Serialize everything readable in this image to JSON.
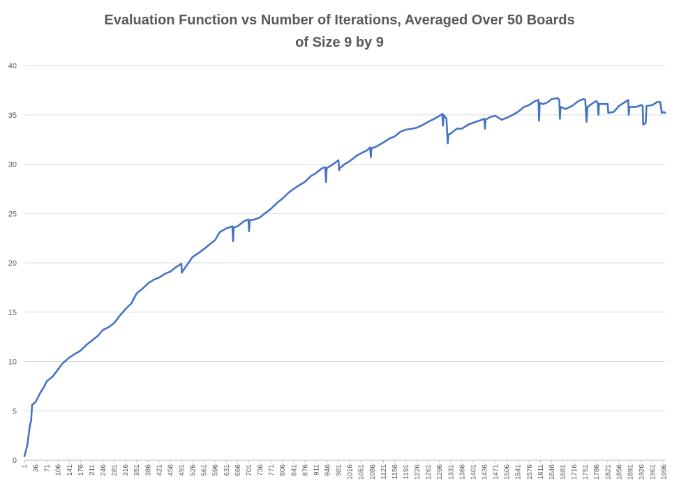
{
  "chart_data": {
    "type": "line",
    "title_lines": [
      "Evaluation Function vs Number of Iterations, Averaged Over 50 Boards",
      "of Size 9 by 9"
    ],
    "xlabel": "",
    "ylabel": "",
    "ylim": [
      0,
      40
    ],
    "yticks": [
      0,
      5,
      10,
      15,
      20,
      25,
      30,
      35,
      40
    ],
    "xlim": [
      1,
      2000
    ],
    "xticks": [
      1,
      36,
      71,
      106,
      141,
      176,
      211,
      246,
      281,
      316,
      351,
      386,
      421,
      456,
      491,
      526,
      561,
      596,
      631,
      666,
      701,
      736,
      771,
      806,
      841,
      876,
      911,
      946,
      981,
      1016,
      1051,
      1086,
      1121,
      1156,
      1191,
      1226,
      1261,
      1296,
      1331,
      1366,
      1401,
      1436,
      1471,
      1506,
      1541,
      1576,
      1611,
      1646,
      1681,
      1716,
      1751,
      1786,
      1821,
      1856,
      1891,
      1926,
      1961,
      1996
    ],
    "grid": true,
    "legend": "none",
    "colors": {
      "line": "#4472C4",
      "grid": "#D9D9D9",
      "text": "#595959"
    },
    "series": [
      {
        "points": [
          [
            1,
            0.4
          ],
          [
            10,
            1.5
          ],
          [
            18,
            3.5
          ],
          [
            22,
            4.0
          ],
          [
            25,
            5.6
          ],
          [
            36,
            5.9
          ],
          [
            50,
            6.8
          ],
          [
            60,
            7.3
          ],
          [
            71,
            8.0
          ],
          [
            90,
            8.5
          ],
          [
            106,
            9.2
          ],
          [
            120,
            9.8
          ],
          [
            141,
            10.4
          ],
          [
            160,
            10.8
          ],
          [
            176,
            11.1
          ],
          [
            195,
            11.7
          ],
          [
            211,
            12.1
          ],
          [
            230,
            12.6
          ],
          [
            246,
            13.2
          ],
          [
            265,
            13.5
          ],
          [
            281,
            13.9
          ],
          [
            300,
            14.7
          ],
          [
            316,
            15.3
          ],
          [
            335,
            15.9
          ],
          [
            351,
            16.9
          ],
          [
            370,
            17.4
          ],
          [
            386,
            17.9
          ],
          [
            405,
            18.3
          ],
          [
            421,
            18.5
          ],
          [
            440,
            18.9
          ],
          [
            456,
            19.1
          ],
          [
            475,
            19.6
          ],
          [
            491,
            19.9
          ],
          [
            492,
            19.0
          ],
          [
            500,
            19.4
          ],
          [
            526,
            20.6
          ],
          [
            545,
            21.0
          ],
          [
            561,
            21.4
          ],
          [
            580,
            21.9
          ],
          [
            596,
            22.3
          ],
          [
            610,
            23.1
          ],
          [
            631,
            23.5
          ],
          [
            650,
            23.7
          ],
          [
            652,
            22.2
          ],
          [
            654,
            23.6
          ],
          [
            666,
            23.7
          ],
          [
            685,
            24.2
          ],
          [
            700,
            24.4
          ],
          [
            702,
            23.2
          ],
          [
            704,
            24.3
          ],
          [
            720,
            24.4
          ],
          [
            736,
            24.6
          ],
          [
            755,
            25.1
          ],
          [
            771,
            25.5
          ],
          [
            790,
            26.1
          ],
          [
            806,
            26.5
          ],
          [
            825,
            27.1
          ],
          [
            841,
            27.5
          ],
          [
            860,
            27.9
          ],
          [
            876,
            28.2
          ],
          [
            895,
            28.8
          ],
          [
            911,
            29.1
          ],
          [
            930,
            29.6
          ],
          [
            940,
            29.7
          ],
          [
            942,
            28.2
          ],
          [
            944,
            29.6
          ],
          [
            960,
            29.9
          ],
          [
            981,
            30.4
          ],
          [
            983,
            29.4
          ],
          [
            985,
            29.6
          ],
          [
            1000,
            30.0
          ],
          [
            1016,
            30.3
          ],
          [
            1035,
            30.8
          ],
          [
            1051,
            31.1
          ],
          [
            1070,
            31.4
          ],
          [
            1080,
            31.7
          ],
          [
            1082,
            30.7
          ],
          [
            1084,
            31.6
          ],
          [
            1100,
            31.8
          ],
          [
            1121,
            32.2
          ],
          [
            1140,
            32.6
          ],
          [
            1156,
            32.8
          ],
          [
            1175,
            33.3
          ],
          [
            1191,
            33.5
          ],
          [
            1210,
            33.6
          ],
          [
            1226,
            33.7
          ],
          [
            1245,
            34.0
          ],
          [
            1261,
            34.3
          ],
          [
            1280,
            34.6
          ],
          [
            1296,
            34.9
          ],
          [
            1305,
            35.1
          ],
          [
            1307,
            33.9
          ],
          [
            1309,
            35.0
          ],
          [
            1318,
            34.6
          ],
          [
            1320,
            33.3
          ],
          [
            1322,
            32.1
          ],
          [
            1324,
            33.0
          ],
          [
            1331,
            33.1
          ],
          [
            1350,
            33.6
          ],
          [
            1366,
            33.6
          ],
          [
            1385,
            34.0
          ],
          [
            1401,
            34.2
          ],
          [
            1420,
            34.4
          ],
          [
            1436,
            34.6
          ],
          [
            1438,
            33.6
          ],
          [
            1440,
            34.5
          ],
          [
            1455,
            34.8
          ],
          [
            1471,
            34.9
          ],
          [
            1490,
            34.5
          ],
          [
            1506,
            34.7
          ],
          [
            1525,
            35.0
          ],
          [
            1541,
            35.3
          ],
          [
            1560,
            35.8
          ],
          [
            1576,
            36.0
          ],
          [
            1595,
            36.4
          ],
          [
            1605,
            36.5
          ],
          [
            1607,
            34.4
          ],
          [
            1609,
            36.2
          ],
          [
            1620,
            36.1
          ],
          [
            1635,
            36.3
          ],
          [
            1646,
            36.6
          ],
          [
            1665,
            36.7
          ],
          [
            1670,
            36.5
          ],
          [
            1672,
            34.6
          ],
          [
            1674,
            35.8
          ],
          [
            1690,
            35.6
          ],
          [
            1710,
            35.9
          ],
          [
            1730,
            36.4
          ],
          [
            1745,
            36.6
          ],
          [
            1747,
            36.6
          ],
          [
            1751,
            36.5
          ],
          [
            1755,
            34.3
          ],
          [
            1758,
            35.8
          ],
          [
            1775,
            36.2
          ],
          [
            1786,
            36.4
          ],
          [
            1790,
            36.2
          ],
          [
            1792,
            35.0
          ],
          [
            1794,
            36.1
          ],
          [
            1821,
            36.1
          ],
          [
            1823,
            35.2
          ],
          [
            1840,
            35.3
          ],
          [
            1856,
            35.9
          ],
          [
            1875,
            36.3
          ],
          [
            1885,
            36.5
          ],
          [
            1887,
            35.0
          ],
          [
            1889,
            35.8
          ],
          [
            1910,
            35.8
          ],
          [
            1926,
            36.0
          ],
          [
            1930,
            35.9
          ],
          [
            1932,
            34.0
          ],
          [
            1940,
            34.2
          ],
          [
            1942,
            35.9
          ],
          [
            1961,
            36.0
          ],
          [
            1975,
            36.3
          ],
          [
            1985,
            36.3
          ],
          [
            1990,
            35.2
          ],
          [
            1996,
            35.3
          ],
          [
            2000,
            35.2
          ]
        ]
      }
    ]
  }
}
